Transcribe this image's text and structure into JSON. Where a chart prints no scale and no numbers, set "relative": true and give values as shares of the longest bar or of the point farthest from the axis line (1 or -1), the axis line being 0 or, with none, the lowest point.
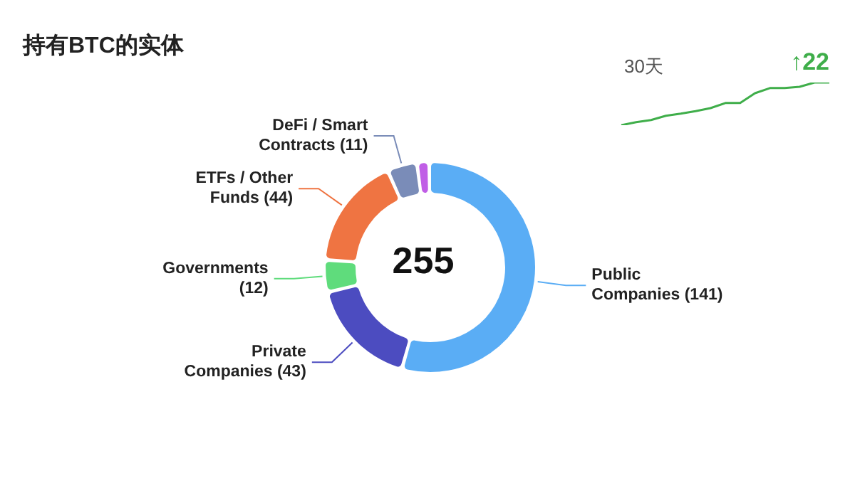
{
  "chart_data": [
    {
      "type": "donut",
      "title": "持有BTC的实体",
      "categories": [
        "Public Companies",
        "Private Companies",
        "Governments",
        "ETFs / Other Funds",
        "DeFi / Smart Contracts",
        null
      ],
      "values": [
        141,
        43,
        12,
        44,
        11,
        4
      ],
      "colors": [
        "#5aadf5",
        "#4c4cc0",
        "#5fdc7c",
        "#ef7442",
        "#7a8cb8",
        "#c05ee6"
      ],
      "value_labels": [
        "(141)",
        "(43)",
        "(12)",
        "(44)",
        "(11)",
        null
      ],
      "annotations": [
        "255"
      ]
    },
    {
      "type": "line",
      "title": "30天",
      "relative": true,
      "categories": [
        null,
        null,
        null,
        null,
        null,
        null,
        null,
        null,
        null,
        null,
        null,
        null,
        null,
        null,
        null
      ],
      "series": [
        {
          "color": "#3fae4a",
          "values": [
            0,
            0.07,
            0.12,
            0.22,
            0.27,
            0.33,
            0.4,
            0.52,
            0.52,
            0.75,
            0.87,
            0.87,
            0.9,
            1,
            1
          ]
        }
      ],
      "annotations": [
        "↑22"
      ]
    }
  ]
}
